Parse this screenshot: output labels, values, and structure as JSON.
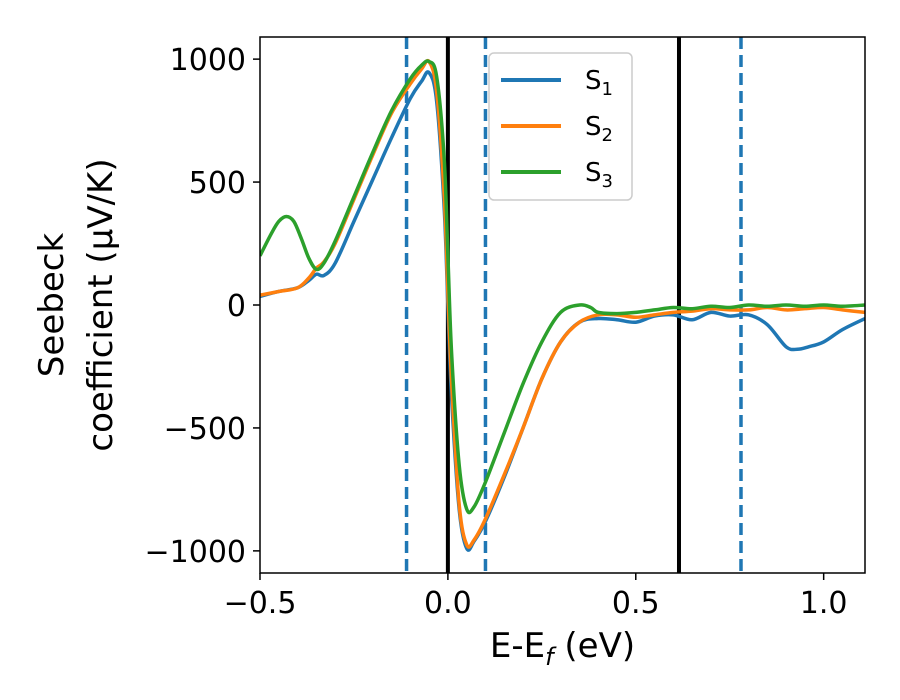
{
  "chart_data": {
    "type": "line",
    "title": "",
    "xlabel": "E-E",
    "xlabel_sub": "f",
    "xlabel_unit": " (eV)",
    "ylabel_line1": "Seebeck",
    "ylabel_line2": "coefficient  (μV/K)",
    "xlim": [
      -0.5,
      1.11
    ],
    "ylim": [
      -1090,
      1090
    ],
    "xticks": [
      -0.5,
      0.0,
      0.5,
      1.0
    ],
    "xtick_labels": [
      "−0.5",
      "0.0",
      "0.5",
      "1.0"
    ],
    "yticks": [
      -1000,
      -500,
      0,
      500,
      1000
    ],
    "ytick_labels": [
      "−1000",
      "−500",
      "0",
      "500",
      "1000"
    ],
    "grid": false,
    "legend_position": "top-center",
    "vlines_solid": [
      0.0,
      0.615
    ],
    "vlines_dashed": [
      -0.11,
      0.1,
      0.78
    ],
    "vline_solid_color": "#000000",
    "vline_dashed_color": "#1f77b4",
    "series": [
      {
        "name": "S",
        "sub": "1",
        "color": "#1f77b4",
        "x": [
          -0.5,
          -0.45,
          -0.4,
          -0.37,
          -0.35,
          -0.33,
          -0.3,
          -0.25,
          -0.2,
          -0.15,
          -0.1,
          -0.07,
          -0.05,
          -0.03,
          -0.01,
          0.0,
          0.01,
          0.03,
          0.05,
          0.07,
          0.1,
          0.15,
          0.2,
          0.25,
          0.3,
          0.35,
          0.4,
          0.45,
          0.5,
          0.55,
          0.6,
          0.65,
          0.7,
          0.75,
          0.8,
          0.85,
          0.9,
          0.93,
          0.96,
          1.0,
          1.05,
          1.11
        ],
        "y": [
          35,
          55,
          70,
          100,
          125,
          120,
          170,
          340,
          510,
          680,
          840,
          910,
          945,
          830,
          400,
          0,
          -380,
          -830,
          -990,
          -960,
          -880,
          -700,
          -500,
          -300,
          -150,
          -70,
          -55,
          -60,
          -70,
          -45,
          -40,
          -60,
          -30,
          -45,
          -40,
          -80,
          -170,
          -180,
          -170,
          -150,
          -100,
          -55
        ]
      },
      {
        "name": "S",
        "sub": "2",
        "color": "#ff7f0e",
        "x": [
          -0.5,
          -0.45,
          -0.4,
          -0.37,
          -0.35,
          -0.33,
          -0.3,
          -0.25,
          -0.2,
          -0.15,
          -0.1,
          -0.07,
          -0.05,
          -0.03,
          -0.01,
          0.0,
          0.01,
          0.03,
          0.05,
          0.07,
          0.1,
          0.15,
          0.2,
          0.25,
          0.3,
          0.35,
          0.4,
          0.45,
          0.5,
          0.55,
          0.6,
          0.65,
          0.7,
          0.75,
          0.8,
          0.85,
          0.9,
          0.95,
          1.0,
          1.05,
          1.11
        ],
        "y": [
          40,
          55,
          70,
          110,
          150,
          175,
          250,
          430,
          610,
          780,
          900,
          960,
          990,
          870,
          450,
          50,
          -320,
          -810,
          -975,
          -955,
          -870,
          -690,
          -500,
          -300,
          -150,
          -70,
          -40,
          -40,
          -50,
          -40,
          -30,
          -25,
          -15,
          -20,
          -20,
          -10,
          -20,
          -15,
          -10,
          -20,
          -30
        ]
      },
      {
        "name": "S",
        "sub": "3",
        "color": "#2ca02c",
        "x": [
          -0.5,
          -0.47,
          -0.45,
          -0.43,
          -0.41,
          -0.39,
          -0.37,
          -0.35,
          -0.33,
          -0.3,
          -0.25,
          -0.2,
          -0.15,
          -0.1,
          -0.07,
          -0.05,
          -0.03,
          -0.01,
          0.0,
          0.01,
          0.03,
          0.05,
          0.07,
          0.1,
          0.15,
          0.2,
          0.25,
          0.3,
          0.35,
          0.38,
          0.4,
          0.45,
          0.5,
          0.55,
          0.6,
          0.65,
          0.7,
          0.75,
          0.8,
          0.85,
          0.9,
          0.95,
          1.0,
          1.05,
          1.11
        ],
        "y": [
          200,
          290,
          340,
          360,
          340,
          270,
          190,
          145,
          170,
          260,
          440,
          620,
          790,
          920,
          975,
          990,
          930,
          600,
          200,
          -200,
          -650,
          -830,
          -820,
          -720,
          -520,
          -320,
          -150,
          -30,
          0,
          -10,
          -30,
          -35,
          -30,
          -20,
          -10,
          -15,
          -5,
          -10,
          0,
          -5,
          0,
          -5,
          0,
          -5,
          0
        ]
      }
    ]
  }
}
